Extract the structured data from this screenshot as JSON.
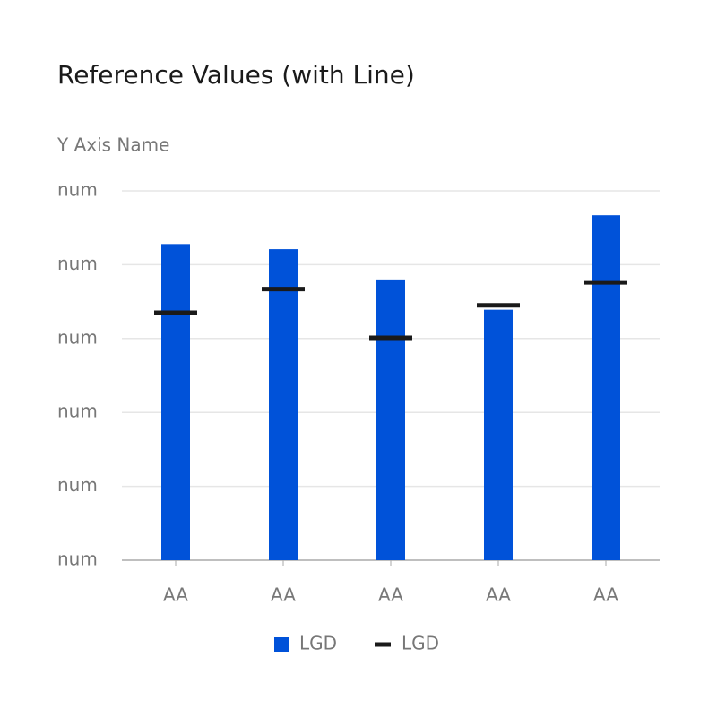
{
  "chart_data": {
    "type": "bar",
    "title": "Reference Values (with Line)",
    "y_axis_label": "Y Axis Name",
    "categories": [
      "AA",
      "AA",
      "AA",
      "AA",
      "AA"
    ],
    "series": [
      {
        "name": "LGD",
        "color": "#0052d9",
        "style": "bar",
        "values": [
          4.28,
          4.21,
          3.8,
          3.39,
          4.67
        ]
      },
      {
        "name": "LGD",
        "color": "#1a1a1a",
        "style": "dash",
        "values": [
          3.35,
          3.67,
          3.01,
          3.45,
          3.76
        ]
      }
    ],
    "ylim": [
      0,
      5
    ],
    "yticks": [
      {
        "value": 0,
        "label": "num"
      },
      {
        "value": 1,
        "label": "num"
      },
      {
        "value": 2,
        "label": "num"
      },
      {
        "value": 3,
        "label": "num"
      },
      {
        "value": 4,
        "label": "num"
      },
      {
        "value": 5,
        "label": "num"
      }
    ],
    "grid": true,
    "legend": "bottom"
  }
}
